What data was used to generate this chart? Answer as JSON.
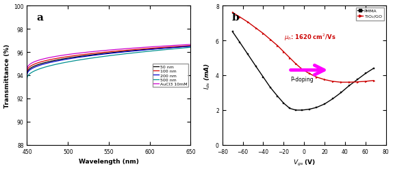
{
  "panel_a": {
    "label": "a",
    "xlabel": "Wavelength (nm)",
    "ylabel": "Transmittance (%)",
    "xlim": [
      450,
      650
    ],
    "ylim": [
      88,
      100
    ],
    "yticks": [
      88,
      90,
      92,
      94,
      96,
      98,
      100
    ],
    "xticks": [
      450,
      500,
      550,
      600,
      650
    ],
    "lines": [
      {
        "label": "50 nm",
        "color": "#000000",
        "y0": 94.1,
        "y1": 96.5,
        "curve": 0.4
      },
      {
        "label": "100 nm",
        "color": "#dd0000",
        "y0": 94.25,
        "y1": 96.55,
        "curve": 0.38
      },
      {
        "label": "200 nm",
        "color": "#0000cc",
        "y0": 94.0,
        "y1": 96.5,
        "curve": 0.42
      },
      {
        "label": "500 nm",
        "color": "#009090",
        "y0": 93.7,
        "y1": 96.4,
        "curve": 0.45
      },
      {
        "label": "AuCl3 10mM",
        "color": "#cc00cc",
        "y0": 94.4,
        "y1": 96.65,
        "curve": 0.35
      }
    ]
  },
  "panel_b": {
    "label": "b",
    "xlabel": "V_gs (V)",
    "ylabel": "I_ds (mA)",
    "xlim": [
      -80,
      80
    ],
    "ylim": [
      0,
      8
    ],
    "yticks": [
      0,
      2,
      4,
      6,
      8
    ],
    "xticks": [
      -80,
      -60,
      -40,
      -20,
      0,
      20,
      40,
      60,
      80
    ],
    "annotation_color": "#cc0000",
    "arrow_color": "#ff00ff",
    "pmma_x": [
      -70,
      -63,
      -55,
      -47,
      -40,
      -33,
      -26,
      -20,
      -14,
      -8,
      -2,
      5,
      12,
      20,
      28,
      36,
      44,
      52,
      60,
      68
    ],
    "pmma_y": [
      6.5,
      5.9,
      5.2,
      4.5,
      3.9,
      3.3,
      2.8,
      2.4,
      2.1,
      2.0,
      2.0,
      2.05,
      2.15,
      2.35,
      2.65,
      3.0,
      3.4,
      3.75,
      4.1,
      4.4
    ],
    "tio2_x": [
      -70,
      -63,
      -55,
      -47,
      -40,
      -33,
      -26,
      -20,
      -14,
      -8,
      -2,
      5,
      12,
      20,
      28,
      36,
      44,
      52,
      60,
      68
    ],
    "tio2_y": [
      7.6,
      7.35,
      7.05,
      6.7,
      6.4,
      6.05,
      5.7,
      5.35,
      5.0,
      4.65,
      4.35,
      4.1,
      3.9,
      3.75,
      3.65,
      3.6,
      3.6,
      3.62,
      3.65,
      3.7
    ]
  },
  "bg_color": "#ffffff"
}
